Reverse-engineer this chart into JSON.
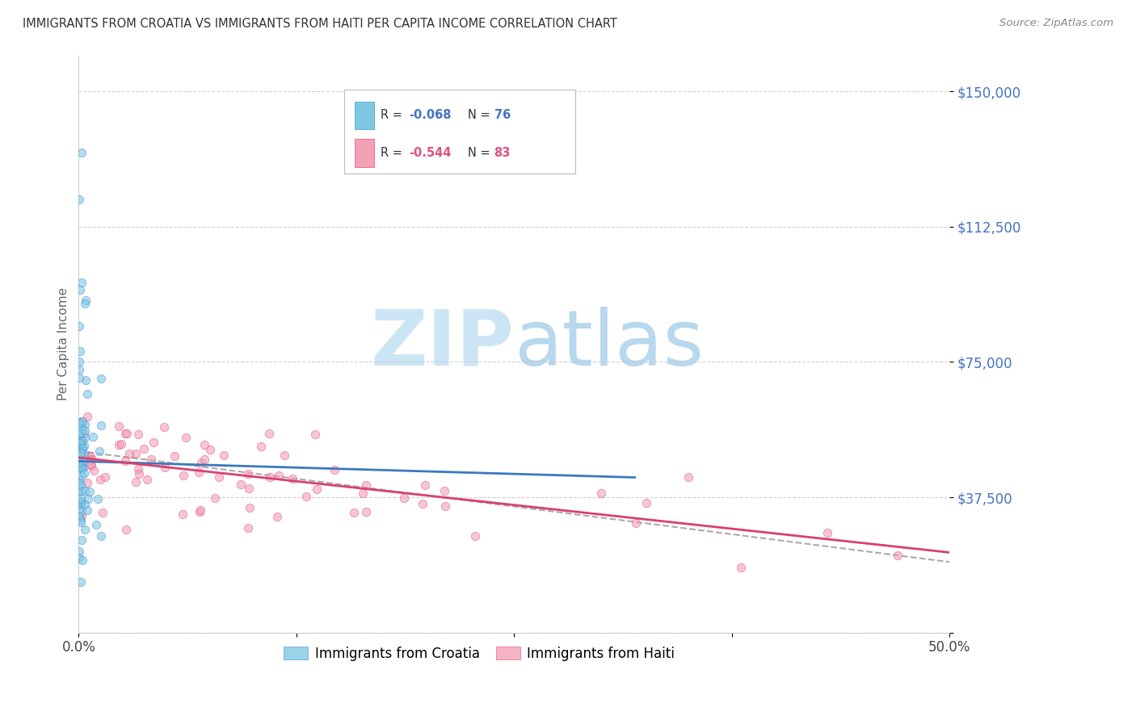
{
  "title": "IMMIGRANTS FROM CROATIA VS IMMIGRANTS FROM HAITI PER CAPITA INCOME CORRELATION CHART",
  "source": "Source: ZipAtlas.com",
  "ylabel": "Per Capita Income",
  "xlim": [
    0.0,
    0.5
  ],
  "ylim": [
    0,
    160000
  ],
  "ytick_vals": [
    0,
    37500,
    75000,
    112500,
    150000
  ],
  "ytick_labels": [
    "",
    "$37,500",
    "$75,000",
    "$112,500",
    "$150,000"
  ],
  "xtick_vals": [
    0.0,
    0.125,
    0.25,
    0.375,
    0.5
  ],
  "xtick_labels": [
    "0.0%",
    "",
    "",
    "",
    "50.0%"
  ],
  "legend_R_croatia": "-0.068",
  "legend_N_croatia": "76",
  "legend_R_haiti": "-0.544",
  "legend_N_haiti": "83",
  "color_croatia_fill": "#7ec8e3",
  "color_croatia_edge": "#4a90d9",
  "color_haiti_fill": "#f4a0b5",
  "color_haiti_edge": "#e05080",
  "color_trendline_croatia": "#3a7abf",
  "color_trendline_haiti": "#d94070",
  "color_dashed": "#aaaaaa",
  "color_watermark_ZIP": "#cce5f5",
  "color_watermark_atlas": "#b8d8ee",
  "background_color": "#ffffff",
  "grid_color": "#cccccc",
  "title_color": "#333333",
  "source_color": "#888888",
  "axis_blue": "#4472c4",
  "ylabel_color": "#666666"
}
